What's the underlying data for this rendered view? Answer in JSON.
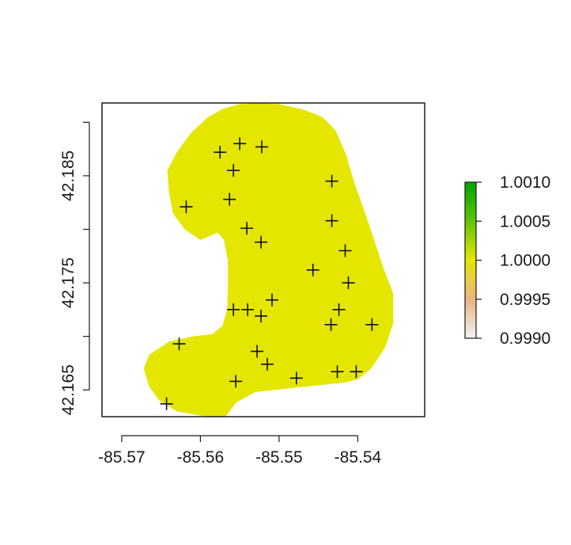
{
  "chart_data": {
    "type": "scatter",
    "title": "",
    "xlabel": "",
    "ylabel": "",
    "xlim": [
      -85.5725,
      -85.5315
    ],
    "ylim": [
      42.1625,
      42.1918
    ],
    "x_ticks": [
      -85.57,
      -85.56,
      -85.55,
      -85.54
    ],
    "x_tick_labels": [
      "-85.57",
      "-85.56",
      "-85.55",
      "-85.54"
    ],
    "y_ticks": [
      42.165,
      42.17,
      42.175,
      42.18,
      42.185,
      42.19
    ],
    "y_tick_labels": [
      "42.165",
      "",
      "42.175",
      "",
      "42.185",
      ""
    ],
    "raster": {
      "fill_color": "#e5e600",
      "value": 1.0,
      "region": [
        [
          -85.555,
          42.1917
        ],
        [
          -85.5525,
          42.1918
        ],
        [
          -85.55,
          42.1917
        ],
        [
          -85.547,
          42.1912
        ],
        [
          -85.5445,
          42.1905
        ],
        [
          -85.5428,
          42.1892
        ],
        [
          -85.5415,
          42.187
        ],
        [
          -85.5405,
          42.1845
        ],
        [
          -85.5393,
          42.182
        ],
        [
          -85.538,
          42.1792
        ],
        [
          -85.5368,
          42.1765
        ],
        [
          -85.5355,
          42.174
        ],
        [
          -85.5355,
          42.1712
        ],
        [
          -85.5365,
          42.169
        ],
        [
          -85.5383,
          42.167
        ],
        [
          -85.54,
          42.166
        ],
        [
          -85.5415,
          42.1657
        ],
        [
          -85.548,
          42.1652
        ],
        [
          -85.553,
          42.1648
        ],
        [
          -85.5555,
          42.1638
        ],
        [
          -85.5568,
          42.1625
        ],
        [
          -85.5592,
          42.1625
        ],
        [
          -85.563,
          42.163
        ],
        [
          -85.5652,
          42.164
        ],
        [
          -85.5665,
          42.1653
        ],
        [
          -85.5672,
          42.167
        ],
        [
          -85.5665,
          42.1683
        ],
        [
          -85.564,
          42.1695
        ],
        [
          -85.561,
          42.17
        ],
        [
          -85.5585,
          42.1702
        ],
        [
          -85.5572,
          42.171
        ],
        [
          -85.5566,
          42.1725
        ],
        [
          -85.5565,
          42.1745
        ],
        [
          -85.5565,
          42.177
        ],
        [
          -85.557,
          42.179
        ],
        [
          -85.5578,
          42.1797
        ],
        [
          -85.56,
          42.179
        ],
        [
          -85.562,
          42.18
        ],
        [
          -85.5635,
          42.1815
        ],
        [
          -85.564,
          42.1835
        ],
        [
          -85.5642,
          42.1855
        ],
        [
          -85.563,
          42.1872
        ],
        [
          -85.5612,
          42.189
        ],
        [
          -85.559,
          42.1905
        ],
        [
          -85.557,
          42.1913
        ]
      ]
    },
    "points": [
      {
        "x": -85.5575,
        "y": 42.1872
      },
      {
        "x": -85.555,
        "y": 42.188
      },
      {
        "x": -85.5522,
        "y": 42.1877
      },
      {
        "x": -85.5558,
        "y": 42.1855
      },
      {
        "x": -85.5563,
        "y": 42.1828
      },
      {
        "x": -85.5618,
        "y": 42.1821
      },
      {
        "x": -85.5433,
        "y": 42.1845
      },
      {
        "x": -85.5433,
        "y": 42.1808
      },
      {
        "x": -85.5541,
        "y": 42.1801
      },
      {
        "x": -85.5523,
        "y": 42.1788
      },
      {
        "x": -85.5416,
        "y": 42.178
      },
      {
        "x": -85.5457,
        "y": 42.1762
      },
      {
        "x": -85.5412,
        "y": 42.175
      },
      {
        "x": -85.5509,
        "y": 42.1734
      },
      {
        "x": -85.5558,
        "y": 42.1725
      },
      {
        "x": -85.554,
        "y": 42.1725
      },
      {
        "x": -85.5523,
        "y": 42.1719
      },
      {
        "x": -85.5424,
        "y": 42.1725
      },
      {
        "x": -85.5434,
        "y": 42.1711
      },
      {
        "x": -85.5382,
        "y": 42.1711
      },
      {
        "x": -85.5627,
        "y": 42.1693
      },
      {
        "x": -85.5528,
        "y": 42.1686
      },
      {
        "x": -85.5515,
        "y": 42.1674
      },
      {
        "x": -85.5426,
        "y": 42.1667
      },
      {
        "x": -85.5402,
        "y": 42.1667
      },
      {
        "x": -85.5478,
        "y": 42.1661
      },
      {
        "x": -85.5555,
        "y": 42.1658
      },
      {
        "x": -85.5643,
        "y": 42.1637
      }
    ],
    "colorbar": {
      "ticks": [
        0.999,
        0.9995,
        1.0,
        1.0005,
        1.001
      ],
      "tick_labels": [
        "0.9990",
        "0.9995",
        "1.0000",
        "1.0005",
        "1.0010"
      ],
      "range": [
        0.999,
        1.001
      ],
      "colors": [
        "#f2f2f2",
        "#ebb483",
        "#e5e600",
        "#5fc400",
        "#00a600"
      ]
    }
  }
}
